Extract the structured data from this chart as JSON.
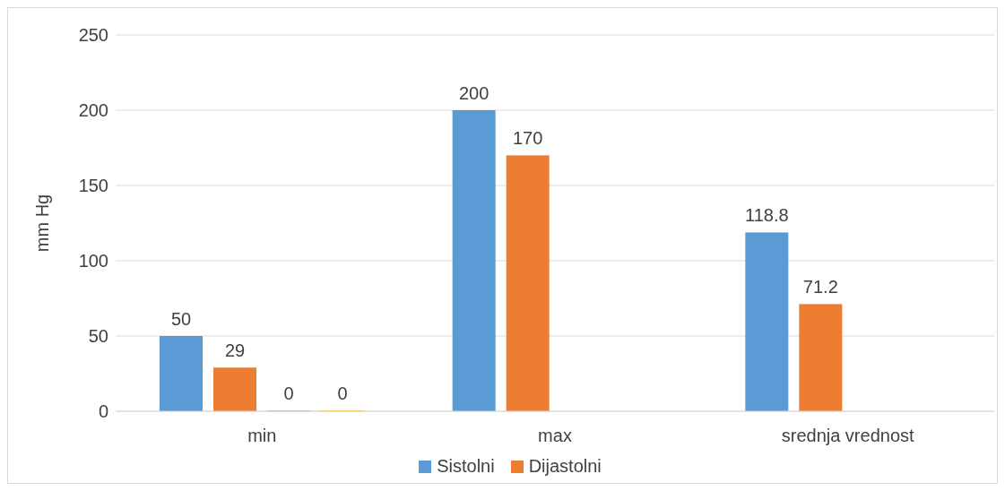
{
  "chart_data": {
    "type": "bar",
    "ylabel": "mm Hg",
    "categories": [
      "min",
      "max",
      "srednja vrednost"
    ],
    "series": [
      {
        "name": "Sistolni",
        "color": "#5b9bd5",
        "values": [
          50,
          200,
          118.8
        ]
      },
      {
        "name": "Dijastolni",
        "color": "#ed7d31",
        "values": [
          29,
          170,
          71.2
        ]
      },
      {
        "color": "#a5a5a5",
        "values": [
          0,
          null,
          null
        ]
      },
      {
        "color": "#ffc000",
        "values": [
          0,
          null,
          null
        ]
      }
    ],
    "ylim": [
      0,
      250
    ],
    "yticks": [
      0,
      50,
      100,
      150,
      200,
      250
    ],
    "grid": "y",
    "legend": "bottom",
    "data_labels": true
  }
}
